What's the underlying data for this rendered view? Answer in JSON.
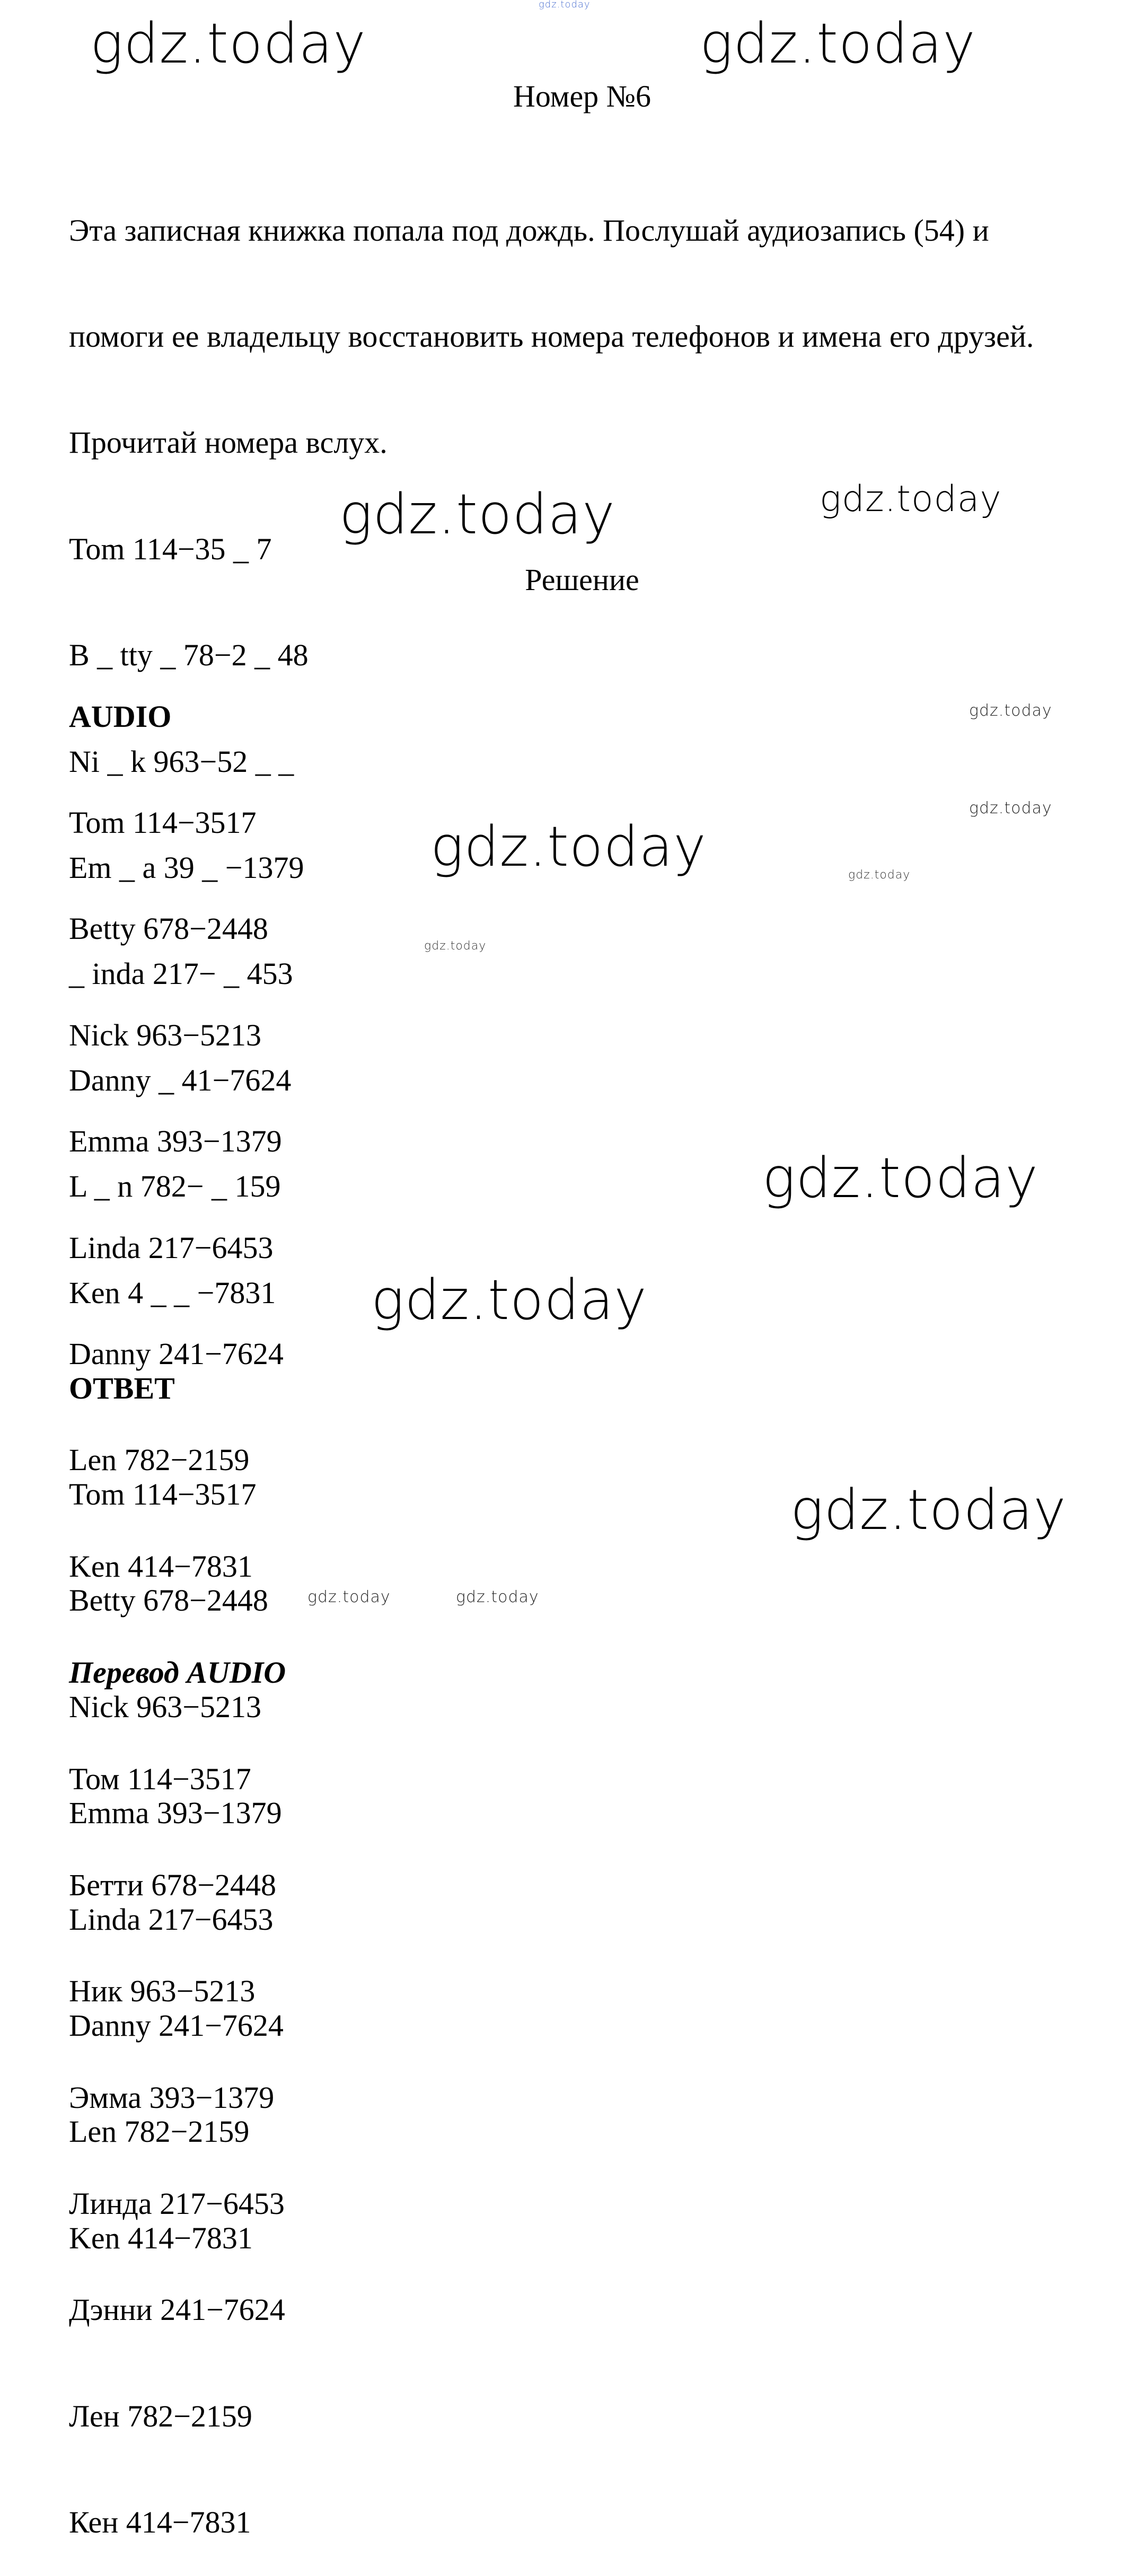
{
  "watermark": "gdz.today",
  "task": {
    "title": "Номер №6",
    "instructions": [
      "Эта записная книжка попала под дождь. Послушай аудиозапись (54) и",
      "помоги ее владельцу восстановить номера телефонов и имена его друзей.",
      "Прочитай номера вслух."
    ],
    "entries": [
      "Tom 114−35 _ 7",
      "B _ tty _ 78−2 _ 48",
      "Ni _ k 963−52 _ _",
      "Em _ a 39 _ −1379",
      "_ inda 217− _ 453",
      "Danny _ 41−7624",
      "L _ n 782− _ 159",
      "Ken 4 _ _ −7831"
    ]
  },
  "solution": {
    "heading": "Решение",
    "audio_heading": "AUDIO",
    "audio": [
      "Tom 114−3517",
      "Betty 678−2448",
      "Nick 963−5213",
      "Emma 393−1379",
      "Linda 217−6453",
      "Danny 241−7624",
      "Len 782−2159",
      "Ken 414−7831"
    ],
    "translation_heading": "Перевод AUDIO",
    "translation": [
      "Том 114−3517",
      "Бетти 678−2448",
      "Ник 963−5213",
      "Эмма 393−1379",
      "Линда 217−6453",
      "Дэнни 241−7624",
      "Лен 782−2159",
      "Кен 414−7831"
    ],
    "answer_heading": "ОТВЕТ",
    "answer": [
      "Tom 114−3517",
      "Betty 678−2448",
      "Nick 963−5213",
      "Emma 393−1379",
      "Linda 217−6453",
      "Danny 241−7624",
      "Len 782−2159",
      "Ken 414−7831"
    ]
  }
}
